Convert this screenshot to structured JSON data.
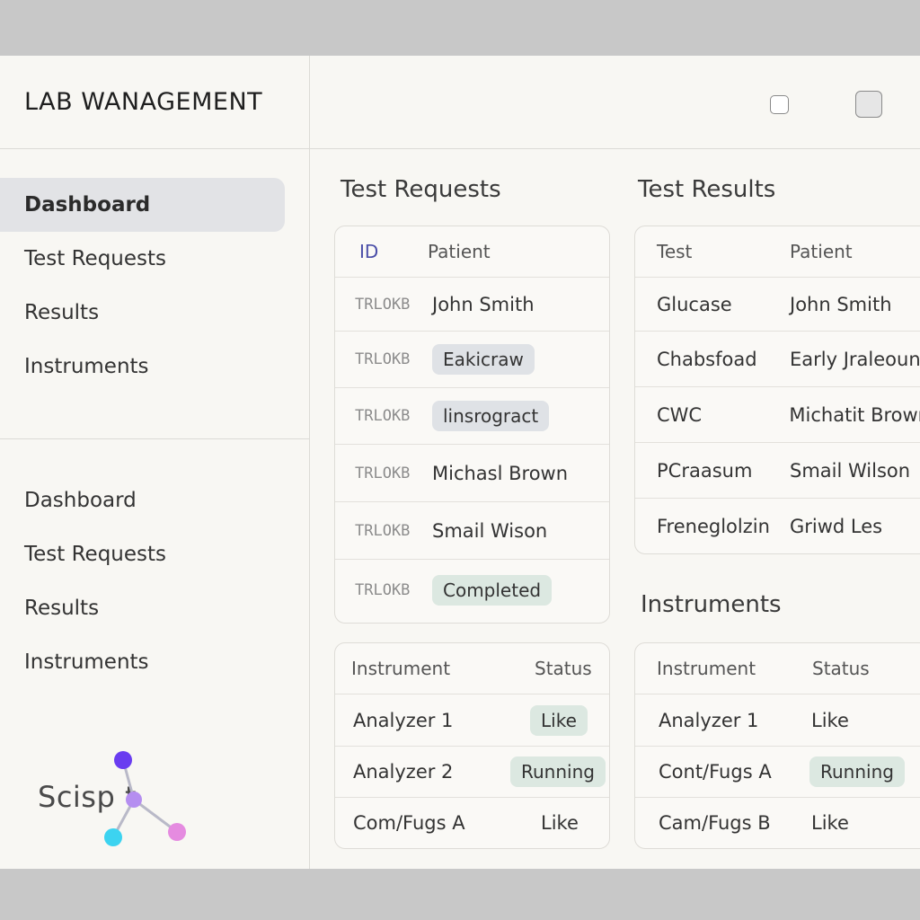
{
  "app": {
    "title": "LAB WANAGEMENT"
  },
  "sidebar": {
    "primary": [
      "Dashboard",
      "Test Requests",
      "Results",
      "Instruments"
    ],
    "secondary": [
      "Dashboard",
      "Test Requests",
      "Results",
      "Instruments"
    ],
    "logo_text": "Scisp  t"
  },
  "requests": {
    "title": "Test Requests",
    "headers": [
      "ID",
      "Patient"
    ],
    "rows": [
      {
        "id": "TRLOKB",
        "patient": "John Smith"
      },
      {
        "id": "TRLOKB",
        "patient": "Eakicraw"
      },
      {
        "id": "TRLOKB",
        "patient": "linsrogract"
      },
      {
        "id": "TRLOKB",
        "patient": "Michasl Brown"
      },
      {
        "id": "TRLOKB",
        "patient": "Smail Wison"
      },
      {
        "id": "TRLOKB",
        "patient": "Completed"
      }
    ]
  },
  "results": {
    "title": "Test Results",
    "headers": [
      "Test",
      "Patient"
    ],
    "rows": [
      {
        "test": "Glucase",
        "patient": "John Smith"
      },
      {
        "test": "Chabsfoad",
        "patient": "Early Jraleoun"
      },
      {
        "test": "CWC",
        "patient": "Michatit Brown"
      },
      {
        "test": "PCraasum",
        "patient": "Smail Wilson"
      },
      {
        "test": "Freneglolzin",
        "patient": "Griwd Les"
      }
    ]
  },
  "instruments_left": {
    "headers": [
      "Instrument",
      "Status"
    ],
    "rows": [
      {
        "name": "Analyzer 1",
        "status": "Like"
      },
      {
        "name": "Analyzer 2",
        "status": "Running"
      },
      {
        "name": "Com/Fugs A",
        "status": "Like"
      }
    ]
  },
  "instruments_right": {
    "title": "Instruments",
    "headers": [
      "Instrument",
      "Status"
    ],
    "rows": [
      {
        "name": "Analyzer 1",
        "status": "Like"
      },
      {
        "name": "Cont/Fugs A",
        "status": "Running"
      },
      {
        "name": "Cam/Fugs B",
        "status": "Like"
      }
    ]
  },
  "colors": {
    "accent_chip": "#dfe2e6",
    "status_chip": "#dce8e1",
    "logo_purple": "#6a3df0",
    "logo_cyan": "#3cd3f0",
    "logo_pink": "#e58be0"
  }
}
